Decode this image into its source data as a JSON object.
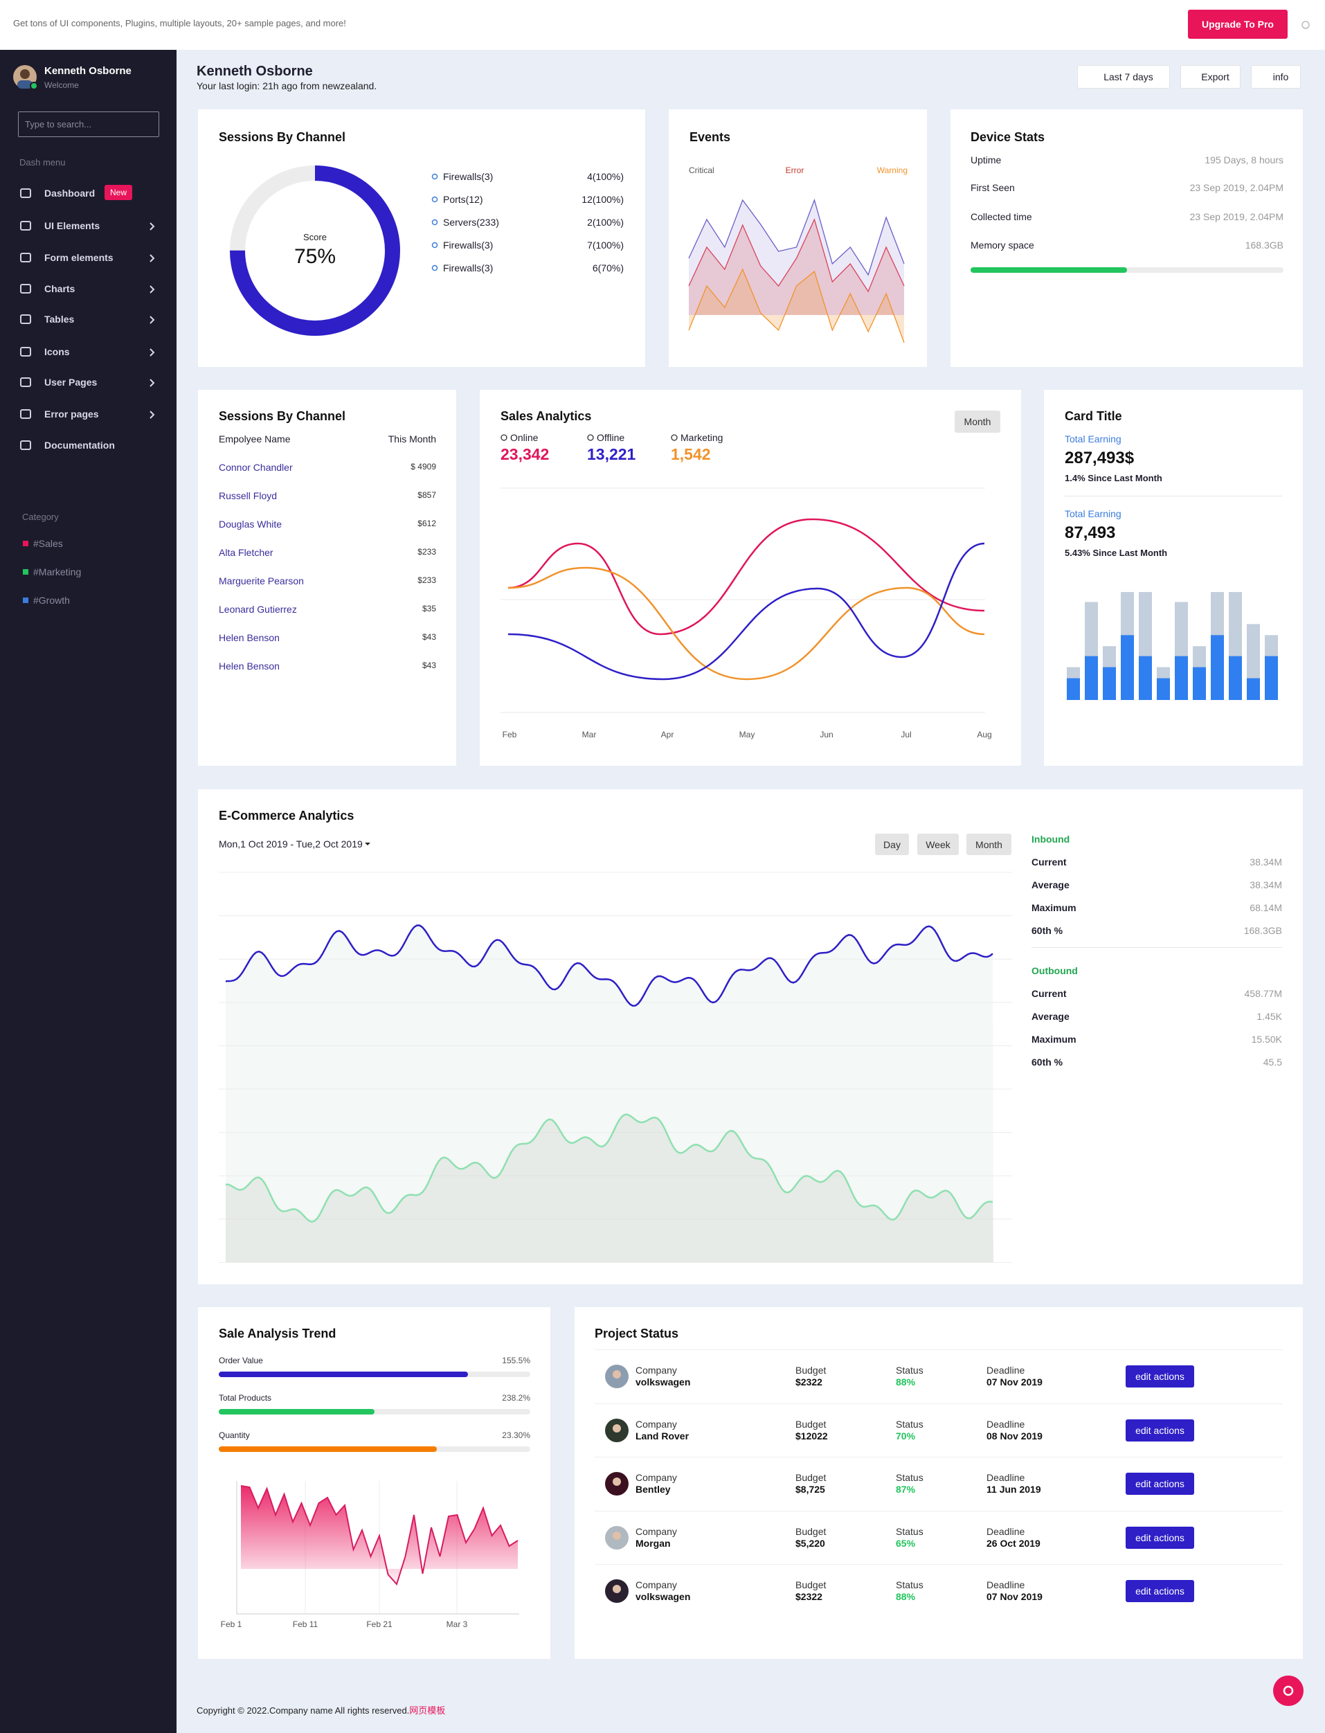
{
  "topbar": {
    "promo": "Get tons of UI components, Plugins, multiple layouts, 20+ sample pages, and more!",
    "button": "Upgrade To Pro"
  },
  "sidebar": {
    "user": {
      "name": "Kenneth Osborne",
      "status": "Welcome"
    },
    "search_placeholder": "Type to search...",
    "menu_title": "Dash menu",
    "menu": [
      {
        "label": "Dashboard",
        "badge": "New"
      },
      {
        "label": "UI Elements"
      },
      {
        "label": "Form elements"
      },
      {
        "label": "Charts"
      },
      {
        "label": "Tables"
      },
      {
        "label": "Icons"
      },
      {
        "label": "User Pages"
      },
      {
        "label": "Error pages"
      },
      {
        "label": "Documentation"
      }
    ],
    "category_title": "Category",
    "categories": [
      "#Sales",
      "#Marketing",
      "#Growth"
    ]
  },
  "header": {
    "name": "Kenneth Osborne",
    "subtitle": "Your last login: 21h ago from newzealand.",
    "buttons": [
      "Last 7 days",
      "Export",
      "info"
    ]
  },
  "sessions": {
    "title": "Sessions By Channel",
    "score_label": "Score",
    "score": "75%",
    "items": [
      {
        "name": "Firewalls(3)",
        "value": "4(100%)"
      },
      {
        "name": "Ports(12)",
        "value": "12(100%)"
      },
      {
        "name": "Servers(233)",
        "value": "2(100%)"
      },
      {
        "name": "Firewalls(3)",
        "value": "7(100%)"
      },
      {
        "name": "Firewalls(3)",
        "value": "6(70%)"
      }
    ]
  },
  "events": {
    "title": "Events",
    "legend": [
      "Critical",
      "Error",
      "Warning"
    ]
  },
  "device_stats": {
    "title": "Device Stats",
    "rows": [
      {
        "label": "Uptime",
        "value": "195 Days, 8 hours"
      },
      {
        "label": "First Seen",
        "value": "23 Sep 2019, 2.04PM"
      },
      {
        "label": "Collected time",
        "value": "23 Sep 2019, 2.04PM"
      },
      {
        "label": "Memory space",
        "value": "168.3GB"
      }
    ]
  },
  "employees": {
    "title": "Sessions By Channel",
    "columns": [
      "Empolyee Name",
      "This Month"
    ],
    "rows": [
      [
        "Connor Chandler",
        "$ 4909"
      ],
      [
        "Russell Floyd",
        "$857"
      ],
      [
        "Douglas White",
        "$612"
      ],
      [
        "Alta Fletcher",
        "$233"
      ],
      [
        "Marguerite Pearson",
        "$233"
      ],
      [
        "Leonard Gutierrez",
        "$35"
      ],
      [
        "Helen Benson",
        "$43"
      ],
      [
        "Helen Benson",
        "$43"
      ]
    ]
  },
  "sales_analytics": {
    "title": "Sales Analytics",
    "button": "Month",
    "stats": [
      {
        "label": "Online",
        "value": "23,342"
      },
      {
        "label": "Offline",
        "value": "13,221"
      },
      {
        "label": "Marketing",
        "value": "1,542"
      }
    ],
    "x_labels": [
      "Feb",
      "Mar",
      "Apr",
      "May",
      "Jun",
      "Jul",
      "Aug"
    ]
  },
  "card_title": {
    "title": "Card Title",
    "blocks": [
      {
        "label": "Total Earning",
        "value": "287,493$",
        "note": "1.4% Since Last Month"
      },
      {
        "label": "Total Earning",
        "value": "87,493",
        "note": "5.43% Since Last Month"
      }
    ]
  },
  "ecommerce": {
    "title": "E-Commerce Analytics",
    "date_range": "Mon,1 Oct 2019 - Tue,2 Oct 2019",
    "buttons": [
      "Day",
      "Week",
      "Month"
    ],
    "inbound": {
      "title": "Inbound",
      "rows": [
        {
          "label": "Current",
          "value": "38.34M"
        },
        {
          "label": "Average",
          "value": "38.34M"
        },
        {
          "label": "Maximum",
          "value": "68.14M"
        },
        {
          "label": "60th %",
          "value": "168.3GB"
        }
      ]
    },
    "outbound": {
      "title": "Outbound",
      "rows": [
        {
          "label": "Current",
          "value": "458.77M"
        },
        {
          "label": "Average",
          "value": "1.45K"
        },
        {
          "label": "Maximum",
          "value": "15.50K"
        },
        {
          "label": "60th %",
          "value": "45.5"
        }
      ]
    }
  },
  "sale_trend": {
    "title": "Sale Analysis Trend",
    "bars": [
      {
        "label": "Order Value",
        "value": "155.5%"
      },
      {
        "label": "Total Products",
        "value": "238.2%"
      },
      {
        "label": "Quantity",
        "value": "23.30%"
      }
    ],
    "x_labels": [
      "Feb 1",
      "Feb 11",
      "Feb 21",
      "Mar 3"
    ]
  },
  "project_status": {
    "title": "Project Status",
    "rows": [
      {
        "company_label": "Company",
        "company": "volkswagen",
        "budget_label": "Budget",
        "budget": "$2322",
        "status_label": "Status",
        "status": "88%",
        "deadline_label": "Deadline",
        "deadline": "07 Nov 2019",
        "action": "edit actions"
      },
      {
        "company_label": "Company",
        "company": "Land Rover",
        "budget_label": "Budget",
        "budget": "$12022",
        "status_label": "Status",
        "status": "70%",
        "deadline_label": "Deadline",
        "deadline": "08 Nov 2019",
        "action": "edit actions"
      },
      {
        "company_label": "Company",
        "company": "Bentley",
        "budget_label": "Budget",
        "budget": "$8,725",
        "status_label": "Status",
        "status": "87%",
        "deadline_label": "Deadline",
        "deadline": "11 Jun 2019",
        "action": "edit actions"
      },
      {
        "company_label": "Company",
        "company": "Morgan",
        "budget_label": "Budget",
        "budget": "$5,220",
        "status_label": "Status",
        "status": "65%",
        "deadline_label": "Deadline",
        "deadline": "26 Oct 2019",
        "action": "edit actions"
      },
      {
        "company_label": "Company",
        "company": "volkswagen",
        "budget_label": "Budget",
        "budget": "$2322",
        "status_label": "Status",
        "status": "88%",
        "deadline_label": "Deadline",
        "deadline": "07 Nov 2019",
        "action": "edit actions"
      }
    ]
  },
  "footer": {
    "text": "Copyright © 2022.Company name All rights reserved.",
    "link": "网页模板"
  }
}
